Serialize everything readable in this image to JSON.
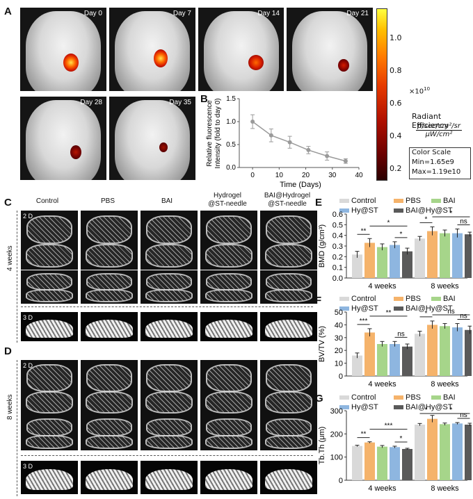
{
  "panels": {
    "a": "A",
    "b": "B",
    "c": "C",
    "d": "D",
    "e": "E",
    "f": "F",
    "g": "G"
  },
  "ivis": {
    "days": [
      "Day 0",
      "Day 7",
      "Day 14",
      "Day 21",
      "Day 28",
      "Day 35"
    ],
    "colorbar": {
      "ticks": [
        "1.0",
        "0.8",
        "0.6",
        "0.4",
        "0.2"
      ],
      "exponent": "×10",
      "exponent_power": "10",
      "title": "Radiant Efficiency",
      "unit_num": "p/sec/cm²/sr",
      "unit_den": "μW/cm²",
      "scale_title": "Color Scale",
      "min": "Min=1.65e9",
      "max": "Max=1.19e10"
    }
  },
  "ct": {
    "columns": [
      "Control",
      "PBS",
      "BAI",
      "Hydrogel\n@ST-needle",
      "BAI@Hydrogel\n@ST-needle"
    ],
    "row_c": "4 weeks",
    "row_d": "8 weeks",
    "tag2d": "2 D",
    "tag3d": "3 D"
  },
  "legend": {
    "items": [
      "Control",
      "PBS",
      "BAI",
      "Hy@ST",
      "BAI@Hy@ST"
    ],
    "colors": [
      "#d9d9d9",
      "#f5b36b",
      "#a6d58a",
      "#8eb6e0",
      "#5a5a5a"
    ]
  },
  "chart_data": [
    {
      "type": "line",
      "panel": "B",
      "x": [
        0,
        7,
        14,
        21,
        28,
        35
      ],
      "y": [
        1.0,
        0.7,
        0.55,
        0.38,
        0.25,
        0.14
      ],
      "yerr": [
        0.15,
        0.14,
        0.13,
        0.08,
        0.09,
        0.05
      ],
      "xlabel": "Time (Days)",
      "ylabel": "Relative fluorescence\nIntensity (fold to day 0)",
      "xticks": [
        "0",
        "10",
        "20",
        "30",
        "40"
      ],
      "yticks": [
        "0.0",
        "0.5",
        "1.0",
        "1.5"
      ],
      "xlim": [
        -5,
        40
      ],
      "ylim": [
        0,
        1.5
      ]
    },
    {
      "type": "bar",
      "panel": "E",
      "categories": [
        "4 weeks",
        "8 weeks"
      ],
      "series": [
        {
          "name": "Control",
          "values": [
            0.22,
            0.37
          ],
          "err": [
            0.03,
            0.02
          ]
        },
        {
          "name": "PBS",
          "values": [
            0.33,
            0.44
          ],
          "err": [
            0.04,
            0.04
          ]
        },
        {
          "name": "BAI",
          "values": [
            0.29,
            0.42
          ],
          "err": [
            0.03,
            0.03
          ]
        },
        {
          "name": "Hy@ST",
          "values": [
            0.31,
            0.42
          ],
          "err": [
            0.03,
            0.04
          ]
        },
        {
          "name": "BAI@Hy@ST",
          "values": [
            0.25,
            0.41
          ],
          "err": [
            0.03,
            0.02
          ]
        }
      ],
      "ylabel": "BMD (g/cm³)",
      "yticks": [
        "0.0",
        "0.1",
        "0.2",
        "0.3",
        "0.4",
        "0.5",
        "0.6"
      ],
      "ylim": [
        0,
        0.6
      ],
      "annotations": [
        "**",
        "*",
        "*",
        "*",
        "*",
        "ns"
      ]
    },
    {
      "type": "bar",
      "panel": "F",
      "categories": [
        "4 weeks",
        "8 weeks"
      ],
      "series": [
        {
          "name": "Control",
          "values": [
            16,
            33
          ],
          "err": [
            2,
            2
          ]
        },
        {
          "name": "PBS",
          "values": [
            34,
            40
          ],
          "err": [
            3,
            3
          ]
        },
        {
          "name": "BAI",
          "values": [
            25,
            39
          ],
          "err": [
            2,
            2
          ]
        },
        {
          "name": "Hy@ST",
          "values": [
            25,
            38
          ],
          "err": [
            2,
            3
          ]
        },
        {
          "name": "BAI@Hy@ST",
          "values": [
            23,
            36
          ],
          "err": [
            2,
            3
          ]
        }
      ],
      "ylabel": "BV/TV (%)",
      "yticks": [
        "0",
        "10",
        "20",
        "30",
        "40",
        "50"
      ],
      "ylim": [
        0,
        50
      ],
      "annotations": [
        "***",
        "**",
        "ns",
        "*",
        "ns",
        "ns"
      ]
    },
    {
      "type": "bar",
      "panel": "G",
      "categories": [
        "4 weeks",
        "8 weeks"
      ],
      "series": [
        {
          "name": "Control",
          "values": [
            148,
            240
          ],
          "err": [
            3,
            5
          ]
        },
        {
          "name": "PBS",
          "values": [
            163,
            265
          ],
          "err": [
            3,
            15
          ]
        },
        {
          "name": "BAI",
          "values": [
            145,
            242
          ],
          "err": [
            5,
            5
          ]
        },
        {
          "name": "Hy@ST",
          "values": [
            143,
            245
          ],
          "err": [
            4,
            4
          ]
        },
        {
          "name": "BAI@Hy@ST",
          "values": [
            135,
            240
          ],
          "err": [
            3,
            6
          ]
        }
      ],
      "ylabel": "Tb.Th (μm)",
      "yticks": [
        "0",
        "100",
        "200",
        "300"
      ],
      "ylim": [
        0,
        300
      ],
      "annotations": [
        "**",
        "***",
        "*",
        "*",
        "*",
        "ns"
      ]
    }
  ]
}
